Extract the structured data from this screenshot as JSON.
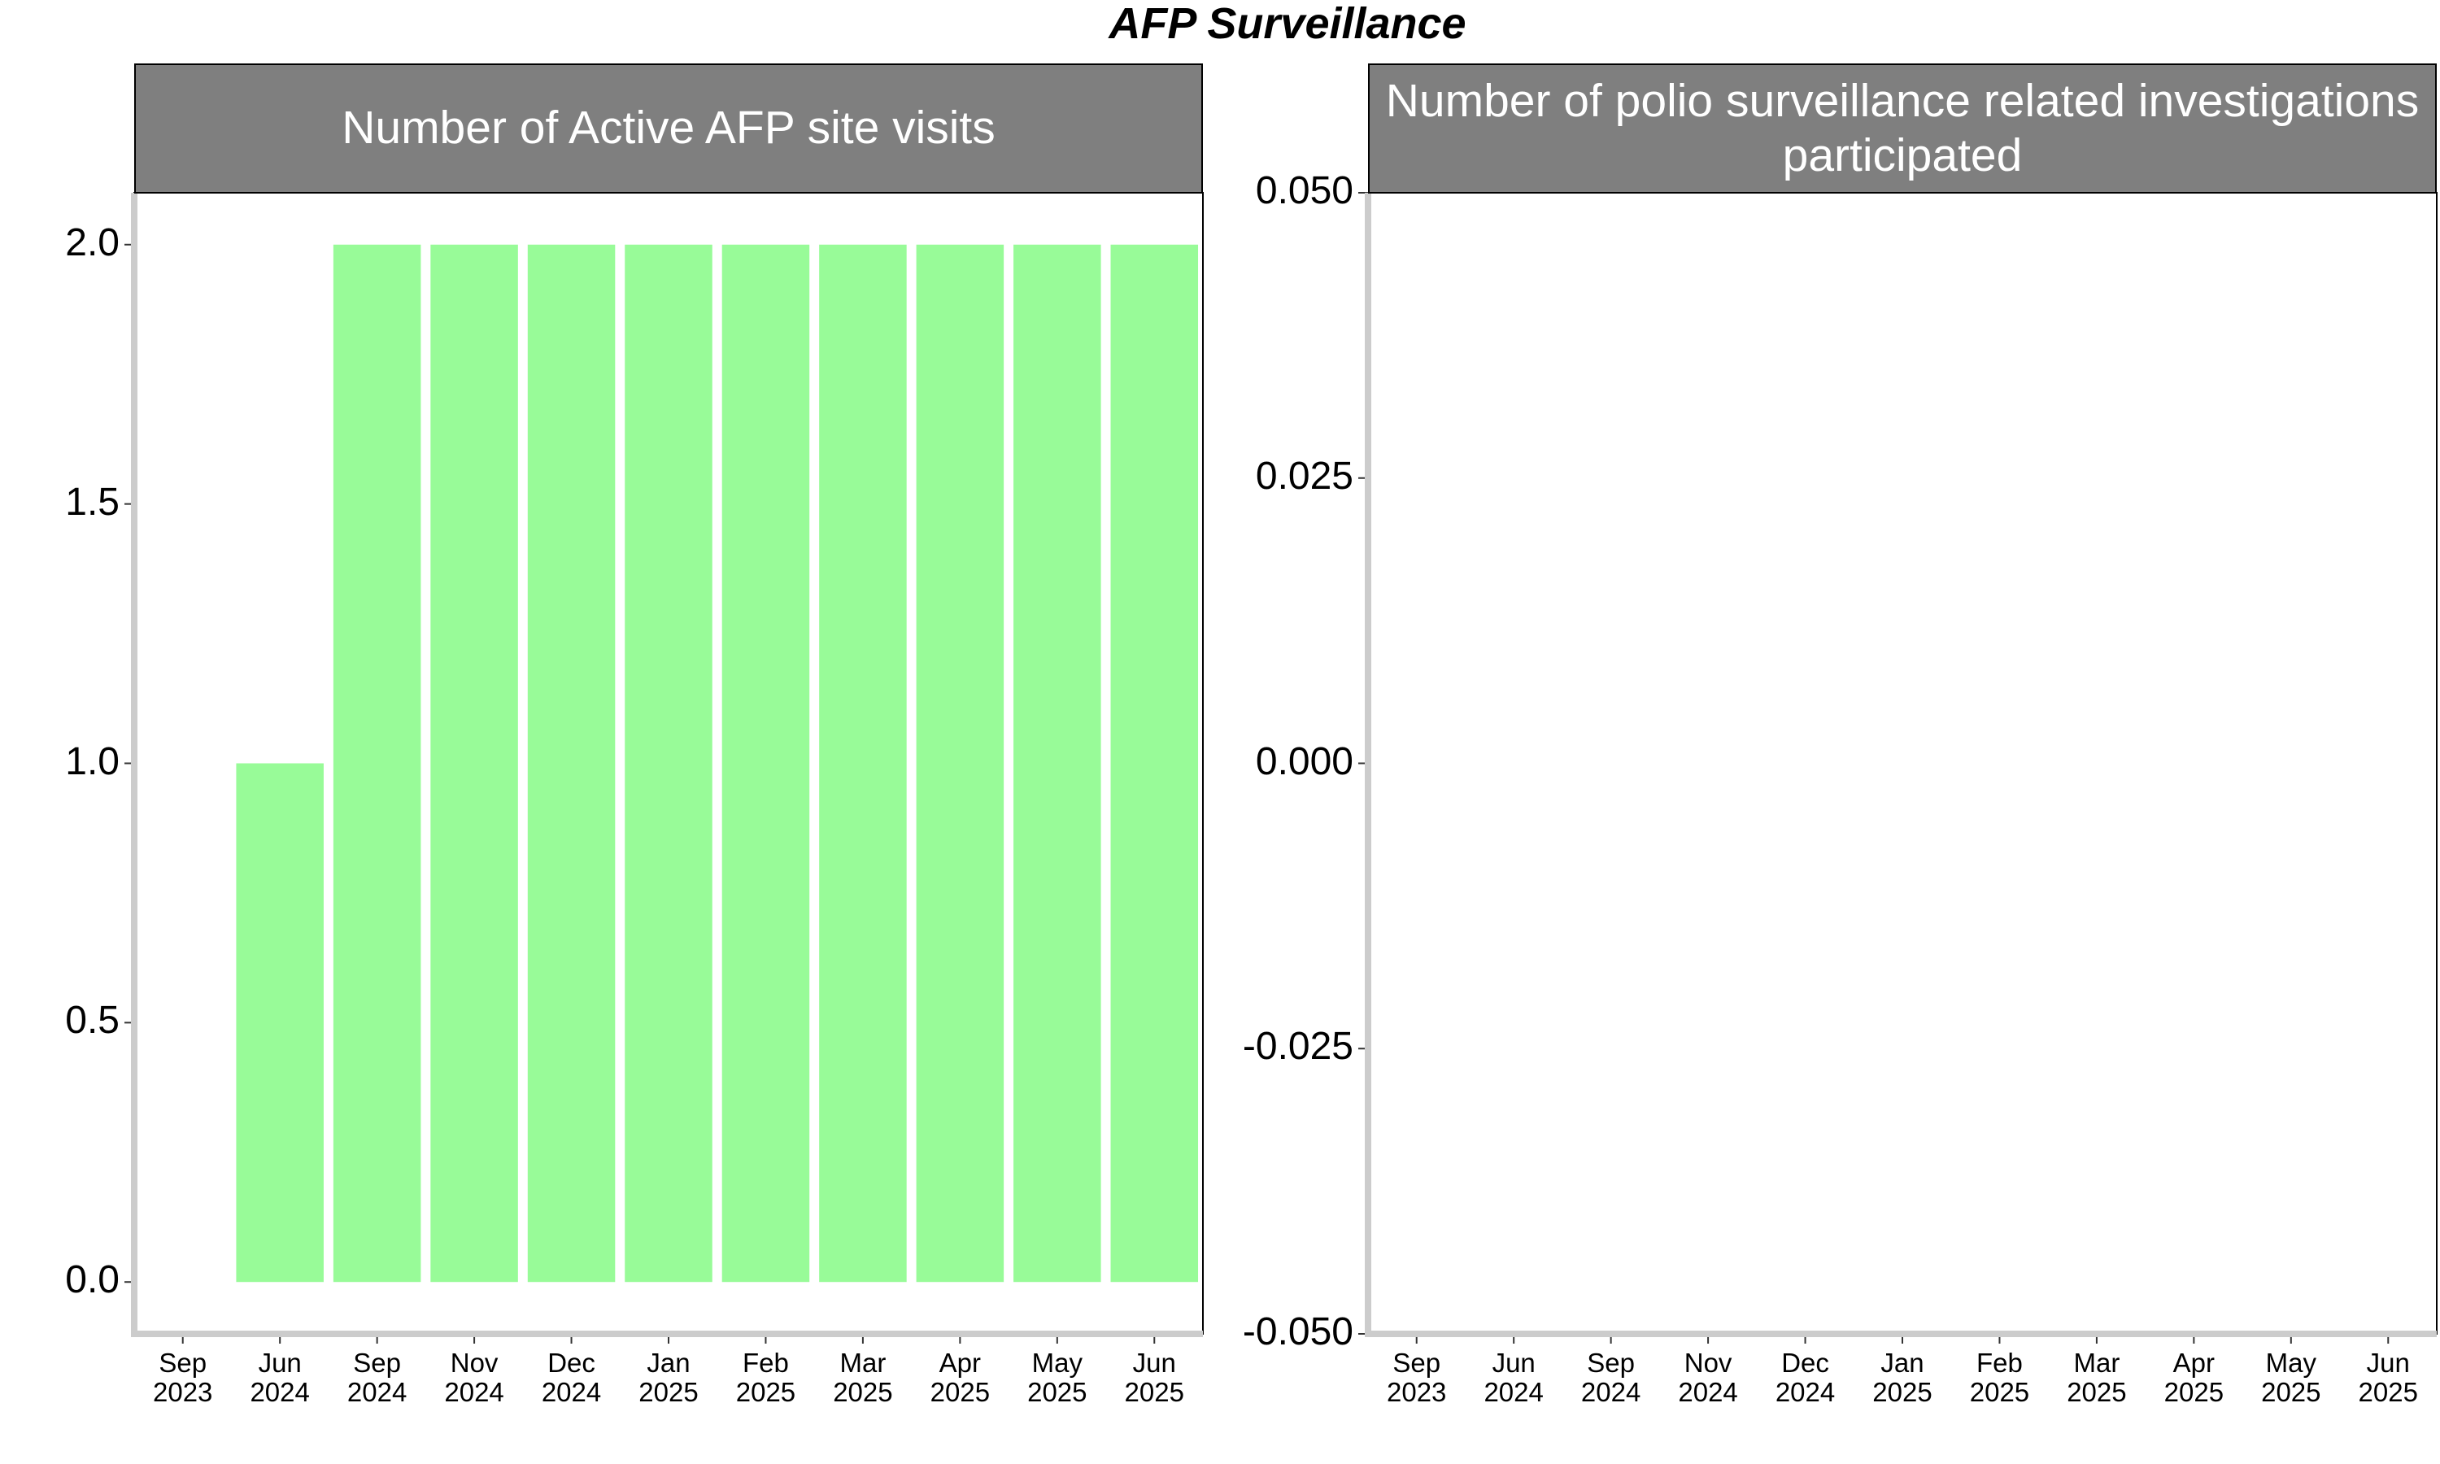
{
  "title": "AFP Surveillance",
  "chart_data": [
    {
      "type": "bar",
      "title": "Number of Active AFP site visits",
      "categories": [
        "Sep\n2023",
        "Jun\n2024",
        "Sep\n2024",
        "Nov\n2024",
        "Dec\n2024",
        "Jan\n2025",
        "Feb\n2025",
        "Mar\n2025",
        "Apr\n2025",
        "May\n2025",
        "Jun\n2025"
      ],
      "values": [
        null,
        1,
        2,
        2,
        2,
        2,
        2,
        2,
        2,
        2,
        2
      ],
      "color": "#98fb98",
      "ylim": [
        -0.1,
        2.1
      ],
      "yticks": [
        {
          "value": 0,
          "label": "0.0"
        },
        0.5,
        {
          "value": 1,
          "label": "1.0"
        },
        1.5,
        {
          "value": 2,
          "label": "2.0"
        }
      ],
      "grid": false
    },
    {
      "type": "bar",
      "title": "Number of polio surveillance related investigations\nparticipated",
      "categories": [
        "Sep\n2023",
        "Jun\n2024",
        "Sep\n2024",
        "Nov\n2024",
        "Dec\n2024",
        "Jan\n2025",
        "Feb\n2025",
        "Mar\n2025",
        "Apr\n2025",
        "May\n2025",
        "Jun\n2025"
      ],
      "values": [
        0,
        0,
        0,
        0,
        0,
        0,
        0,
        0,
        0,
        0,
        0
      ],
      "color": "#98fb98",
      "ylim": [
        -0.05,
        0.05
      ],
      "yticks": [
        {
          "value": -0.05,
          "label": "-0.050"
        },
        {
          "value": -0.025,
          "label": "-0.025"
        },
        {
          "value": 0,
          "label": "0.000"
        },
        {
          "value": 0.025,
          "label": "0.025"
        },
        {
          "value": 0.05,
          "label": "0.050"
        }
      ],
      "grid": false
    }
  ]
}
